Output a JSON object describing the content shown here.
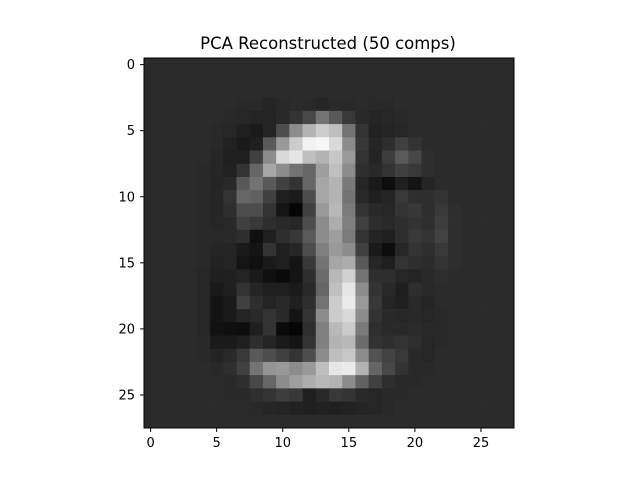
{
  "chart_data": {
    "type": "heatmap",
    "title": "PCA Reconstructed (50 comps)",
    "xlabel": "",
    "ylabel": "",
    "colormap": "gray",
    "grid": false,
    "xlim": [
      -0.5,
      27.5
    ],
    "ylim": [
      27.5,
      -0.5
    ],
    "xticks": [
      0,
      5,
      10,
      15,
      20,
      25
    ],
    "yticks": [
      0,
      5,
      10,
      15,
      20,
      25
    ],
    "xtick_labels": [
      "0",
      "5",
      "10",
      "15",
      "20",
      "25"
    ],
    "ytick_labels": [
      "0",
      "5",
      "10",
      "15",
      "20",
      "25"
    ],
    "image_size": [
      28,
      28
    ],
    "value_range": [
      0,
      1
    ],
    "values": [
      [
        0.17,
        0.17,
        0.17,
        0.17,
        0.17,
        0.17,
        0.17,
        0.17,
        0.17,
        0.17,
        0.17,
        0.17,
        0.17,
        0.17,
        0.17,
        0.17,
        0.17,
        0.17,
        0.17,
        0.17,
        0.17,
        0.17,
        0.17,
        0.17,
        0.17,
        0.17,
        0.17,
        0.17
      ],
      [
        0.17,
        0.17,
        0.17,
        0.17,
        0.17,
        0.17,
        0.17,
        0.17,
        0.17,
        0.17,
        0.17,
        0.17,
        0.17,
        0.17,
        0.17,
        0.17,
        0.17,
        0.17,
        0.17,
        0.17,
        0.17,
        0.17,
        0.17,
        0.17,
        0.17,
        0.17,
        0.17,
        0.17
      ],
      [
        0.17,
        0.17,
        0.17,
        0.17,
        0.17,
        0.17,
        0.17,
        0.17,
        0.17,
        0.17,
        0.17,
        0.17,
        0.17,
        0.17,
        0.17,
        0.17,
        0.17,
        0.17,
        0.17,
        0.17,
        0.17,
        0.17,
        0.17,
        0.17,
        0.17,
        0.17,
        0.17,
        0.17
      ],
      [
        0.17,
        0.17,
        0.17,
        0.17,
        0.17,
        0.17,
        0.17,
        0.16,
        0.16,
        0.15,
        0.16,
        0.17,
        0.16,
        0.15,
        0.16,
        0.16,
        0.17,
        0.16,
        0.16,
        0.17,
        0.17,
        0.17,
        0.17,
        0.17,
        0.17,
        0.17,
        0.17,
        0.17
      ],
      [
        0.17,
        0.17,
        0.17,
        0.17,
        0.17,
        0.17,
        0.16,
        0.15,
        0.14,
        0.14,
        0.16,
        0.2,
        0.28,
        0.45,
        0.35,
        0.22,
        0.16,
        0.14,
        0.15,
        0.16,
        0.17,
        0.17,
        0.17,
        0.17,
        0.17,
        0.17,
        0.17,
        0.17
      ],
      [
        0.17,
        0.17,
        0.17,
        0.17,
        0.17,
        0.16,
        0.15,
        0.12,
        0.1,
        0.14,
        0.3,
        0.55,
        0.7,
        0.8,
        0.75,
        0.45,
        0.2,
        0.13,
        0.14,
        0.15,
        0.17,
        0.17,
        0.17,
        0.17,
        0.17,
        0.17,
        0.17,
        0.17
      ],
      [
        0.17,
        0.17,
        0.17,
        0.17,
        0.17,
        0.16,
        0.13,
        0.1,
        0.12,
        0.35,
        0.6,
        0.8,
        0.95,
        0.97,
        0.85,
        0.55,
        0.22,
        0.15,
        0.18,
        0.25,
        0.2,
        0.17,
        0.17,
        0.17,
        0.17,
        0.17,
        0.17,
        0.17
      ],
      [
        0.17,
        0.17,
        0.17,
        0.17,
        0.17,
        0.15,
        0.12,
        0.12,
        0.25,
        0.55,
        0.85,
        0.9,
        0.75,
        0.7,
        0.78,
        0.6,
        0.2,
        0.14,
        0.24,
        0.35,
        0.28,
        0.18,
        0.17,
        0.17,
        0.17,
        0.17,
        0.17,
        0.17
      ],
      [
        0.17,
        0.17,
        0.17,
        0.17,
        0.16,
        0.15,
        0.13,
        0.2,
        0.4,
        0.65,
        0.55,
        0.45,
        0.4,
        0.62,
        0.75,
        0.55,
        0.18,
        0.16,
        0.2,
        0.25,
        0.22,
        0.18,
        0.17,
        0.17,
        0.17,
        0.17,
        0.17,
        0.17
      ],
      [
        0.17,
        0.17,
        0.17,
        0.17,
        0.16,
        0.14,
        0.16,
        0.35,
        0.45,
        0.35,
        0.25,
        0.2,
        0.4,
        0.65,
        0.7,
        0.48,
        0.15,
        0.1,
        0.05,
        0.12,
        0.08,
        0.14,
        0.17,
        0.17,
        0.17,
        0.17,
        0.17,
        0.17
      ],
      [
        0.17,
        0.17,
        0.17,
        0.17,
        0.16,
        0.15,
        0.2,
        0.4,
        0.38,
        0.25,
        0.12,
        0.1,
        0.3,
        0.65,
        0.7,
        0.45,
        0.16,
        0.12,
        0.14,
        0.22,
        0.18,
        0.18,
        0.2,
        0.17,
        0.17,
        0.17,
        0.17,
        0.17
      ],
      [
        0.17,
        0.17,
        0.17,
        0.17,
        0.16,
        0.15,
        0.18,
        0.3,
        0.3,
        0.2,
        0.08,
        0.02,
        0.25,
        0.6,
        0.72,
        0.48,
        0.2,
        0.16,
        0.15,
        0.2,
        0.22,
        0.18,
        0.22,
        0.18,
        0.17,
        0.17,
        0.17,
        0.17
      ],
      [
        0.17,
        0.17,
        0.17,
        0.17,
        0.16,
        0.15,
        0.16,
        0.25,
        0.22,
        0.18,
        0.16,
        0.15,
        0.3,
        0.55,
        0.68,
        0.5,
        0.25,
        0.18,
        0.16,
        0.18,
        0.2,
        0.18,
        0.24,
        0.18,
        0.17,
        0.17,
        0.17,
        0.17
      ],
      [
        0.17,
        0.17,
        0.17,
        0.17,
        0.16,
        0.16,
        0.16,
        0.18,
        0.06,
        0.12,
        0.18,
        0.22,
        0.35,
        0.55,
        0.62,
        0.48,
        0.2,
        0.14,
        0.12,
        0.18,
        0.22,
        0.2,
        0.26,
        0.18,
        0.17,
        0.17,
        0.17,
        0.17
      ],
      [
        0.17,
        0.17,
        0.17,
        0.17,
        0.16,
        0.15,
        0.14,
        0.1,
        0.08,
        0.2,
        0.12,
        0.15,
        0.3,
        0.5,
        0.6,
        0.55,
        0.25,
        0.1,
        0.05,
        0.15,
        0.2,
        0.18,
        0.22,
        0.18,
        0.17,
        0.17,
        0.17,
        0.17
      ],
      [
        0.17,
        0.17,
        0.17,
        0.17,
        0.16,
        0.13,
        0.14,
        0.08,
        0.06,
        0.1,
        0.12,
        0.08,
        0.22,
        0.45,
        0.65,
        0.68,
        0.35,
        0.15,
        0.12,
        0.2,
        0.18,
        0.17,
        0.2,
        0.18,
        0.17,
        0.17,
        0.17,
        0.17
      ],
      [
        0.17,
        0.17,
        0.17,
        0.17,
        0.15,
        0.12,
        0.12,
        0.14,
        0.1,
        0.06,
        0.04,
        0.08,
        0.18,
        0.42,
        0.72,
        0.82,
        0.45,
        0.18,
        0.18,
        0.15,
        0.14,
        0.16,
        0.18,
        0.17,
        0.17,
        0.17,
        0.17,
        0.17
      ],
      [
        0.17,
        0.17,
        0.17,
        0.17,
        0.15,
        0.1,
        0.12,
        0.2,
        0.14,
        0.12,
        0.12,
        0.1,
        0.16,
        0.4,
        0.75,
        0.9,
        0.55,
        0.2,
        0.16,
        0.12,
        0.18,
        0.16,
        0.17,
        0.17,
        0.17,
        0.17,
        0.17,
        0.17
      ],
      [
        0.17,
        0.17,
        0.17,
        0.17,
        0.15,
        0.08,
        0.1,
        0.25,
        0.18,
        0.14,
        0.16,
        0.12,
        0.18,
        0.45,
        0.8,
        0.92,
        0.6,
        0.22,
        0.14,
        0.12,
        0.16,
        0.14,
        0.17,
        0.17,
        0.17,
        0.17,
        0.17,
        0.17
      ],
      [
        0.17,
        0.17,
        0.17,
        0.17,
        0.15,
        0.08,
        0.1,
        0.14,
        0.16,
        0.2,
        0.16,
        0.08,
        0.2,
        0.55,
        0.8,
        0.85,
        0.55,
        0.2,
        0.16,
        0.15,
        0.16,
        0.15,
        0.16,
        0.17,
        0.17,
        0.17,
        0.17,
        0.17
      ],
      [
        0.17,
        0.17,
        0.17,
        0.17,
        0.15,
        0.07,
        0.06,
        0.05,
        0.12,
        0.2,
        0.04,
        0.02,
        0.18,
        0.5,
        0.72,
        0.8,
        0.48,
        0.18,
        0.16,
        0.16,
        0.17,
        0.16,
        0.16,
        0.17,
        0.17,
        0.17,
        0.17,
        0.17
      ],
      [
        0.17,
        0.17,
        0.17,
        0.17,
        0.16,
        0.1,
        0.1,
        0.12,
        0.18,
        0.14,
        0.1,
        0.08,
        0.2,
        0.5,
        0.7,
        0.72,
        0.42,
        0.2,
        0.18,
        0.2,
        0.18,
        0.15,
        0.16,
        0.17,
        0.17,
        0.17,
        0.17,
        0.17
      ],
      [
        0.17,
        0.17,
        0.17,
        0.17,
        0.16,
        0.14,
        0.16,
        0.22,
        0.35,
        0.3,
        0.25,
        0.2,
        0.3,
        0.55,
        0.75,
        0.78,
        0.55,
        0.32,
        0.26,
        0.22,
        0.16,
        0.15,
        0.17,
        0.17,
        0.17,
        0.17,
        0.17,
        0.17
      ],
      [
        0.17,
        0.17,
        0.17,
        0.17,
        0.17,
        0.16,
        0.18,
        0.25,
        0.45,
        0.58,
        0.6,
        0.55,
        0.6,
        0.75,
        0.9,
        0.92,
        0.7,
        0.4,
        0.28,
        0.2,
        0.16,
        0.16,
        0.17,
        0.17,
        0.17,
        0.17,
        0.17,
        0.17
      ],
      [
        0.17,
        0.17,
        0.17,
        0.17,
        0.17,
        0.17,
        0.16,
        0.18,
        0.28,
        0.4,
        0.55,
        0.62,
        0.68,
        0.72,
        0.7,
        0.55,
        0.38,
        0.25,
        0.18,
        0.16,
        0.16,
        0.17,
        0.17,
        0.17,
        0.17,
        0.17,
        0.17,
        0.17
      ],
      [
        0.17,
        0.17,
        0.17,
        0.17,
        0.17,
        0.17,
        0.16,
        0.16,
        0.18,
        0.2,
        0.24,
        0.22,
        0.12,
        0.16,
        0.22,
        0.2,
        0.16,
        0.15,
        0.16,
        0.16,
        0.17,
        0.17,
        0.17,
        0.17,
        0.17,
        0.17,
        0.17,
        0.17
      ],
      [
        0.17,
        0.17,
        0.17,
        0.17,
        0.17,
        0.17,
        0.17,
        0.17,
        0.16,
        0.15,
        0.14,
        0.13,
        0.12,
        0.13,
        0.12,
        0.13,
        0.14,
        0.15,
        0.16,
        0.17,
        0.17,
        0.17,
        0.17,
        0.17,
        0.17,
        0.17,
        0.17,
        0.17
      ],
      [
        0.17,
        0.17,
        0.17,
        0.17,
        0.17,
        0.17,
        0.17,
        0.17,
        0.17,
        0.17,
        0.17,
        0.17,
        0.17,
        0.17,
        0.17,
        0.17,
        0.17,
        0.17,
        0.17,
        0.17,
        0.17,
        0.17,
        0.17,
        0.17,
        0.17,
        0.17,
        0.17,
        0.17
      ]
    ]
  }
}
